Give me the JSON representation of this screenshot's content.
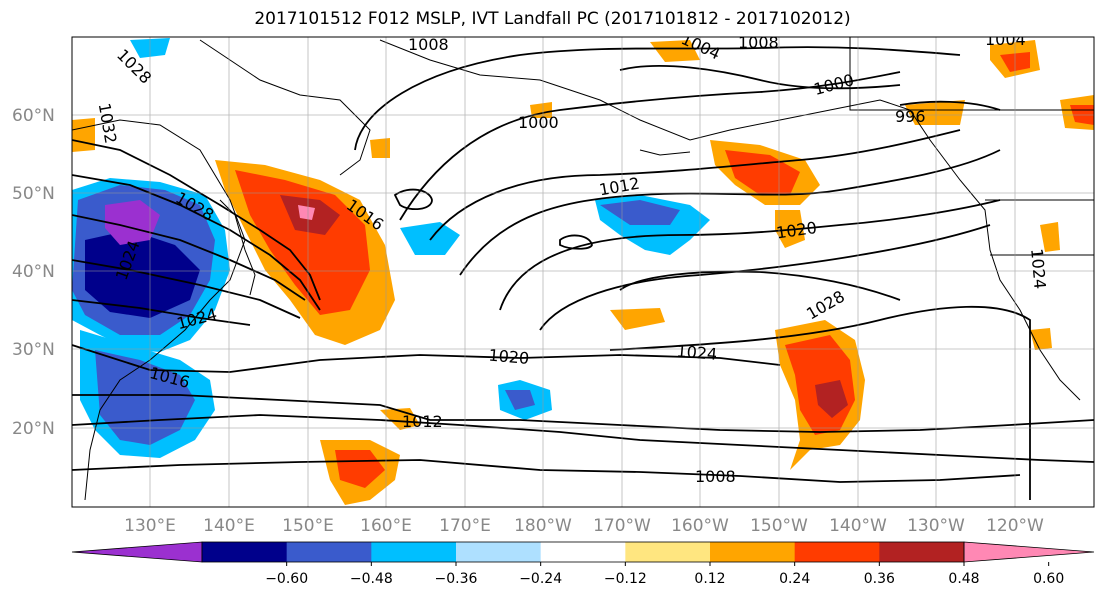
{
  "title": "2017101512 F012 MSLP, IVT Landfall PC (2017101812 - 2017102012)",
  "lat_labels": [
    "60°N",
    "50°N",
    "40°N",
    "30°N",
    "20°N"
  ],
  "lon_labels": [
    "130°E",
    "140°E",
    "150°E",
    "160°E",
    "170°E",
    "180°W",
    "170°W",
    "160°W",
    "150°W",
    "140°W",
    "130°W",
    "120°W"
  ],
  "contour_labels": [
    "1028",
    "1032",
    "1008",
    "1004",
    "1008",
    "1004",
    "1000",
    "996",
    "1000",
    "1012",
    "1016",
    "1028",
    "1020",
    "1024",
    "1020",
    "1024",
    "1028",
    "1024",
    "1016",
    "1012",
    "1008",
    "1024"
  ],
  "colorbar": {
    "ticks": [
      "−0.60",
      "−0.48",
      "−0.36",
      "−0.24",
      "−0.12",
      "0.12",
      "0.24",
      "0.36",
      "0.48",
      "0.60"
    ],
    "colors": [
      "#9b30d0",
      "#00008b",
      "#3a5bcc",
      "#00bfff",
      "#aee0ff",
      "#ffffff",
      "#ffe680",
      "#ffa500",
      "#ff3c00",
      "#b22222",
      "#ff88b4"
    ]
  }
}
